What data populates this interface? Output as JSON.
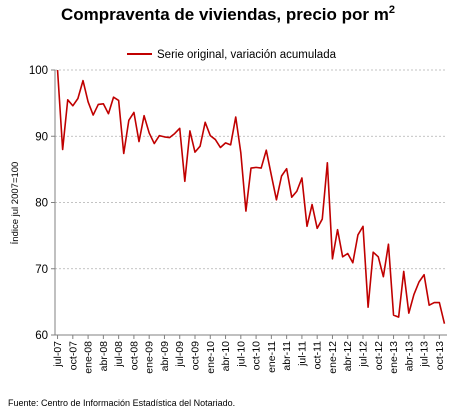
{
  "chart_data": {
    "type": "line",
    "title": "Compraventa de viviendas, precio por m",
    "title_superscript": "2",
    "ylabel": "Índice jul 2007=100",
    "source": "Fuente: Centro de Información Estadística del Notariado.",
    "ylim": [
      60,
      100
    ],
    "yticks": [
      60,
      70,
      80,
      90,
      100
    ],
    "grid": "horizontal",
    "legend_position": "top",
    "series_color": "#c00000",
    "x_tick_labels": [
      "jul-07",
      "oct-07",
      "ene-08",
      "abr-08",
      "jul-08",
      "oct-08",
      "ene-09",
      "abr-09",
      "jul-09",
      "oct-09",
      "ene-10",
      "abr-10",
      "jul-10",
      "oct-10",
      "ene-11",
      "abr-11",
      "jul-11",
      "oct-11",
      "ene-12",
      "abr-12",
      "jul-12",
      "oct-12",
      "ene-13",
      "abr-13",
      "jul-13",
      "oct-13"
    ],
    "series": [
      {
        "name": "Serie original, variación acumulada",
        "values": [
          100,
          88,
          95.5,
          94.6,
          95.7,
          98.4,
          95.2,
          93.2,
          94.8,
          94.9,
          93.4,
          95.9,
          95.4,
          87.4,
          92.4,
          93.6,
          89.2,
          93.1,
          90.5,
          88.9,
          90.1,
          89.9,
          89.8,
          90.4,
          91.2,
          83.2,
          90.8,
          87.6,
          88.5,
          92.1,
          90.1,
          89.5,
          88.3,
          89.0,
          88.7,
          92.9,
          87.5,
          78.7,
          85.2,
          85.3,
          85.2,
          87.9,
          84.1,
          80.4,
          84.0,
          85.1,
          80.8,
          81.7,
          83.7,
          76.4,
          79.7,
          76.1,
          77.5,
          86.0,
          71.5,
          75.9,
          71.8,
          72.3,
          70.9,
          75.1,
          76.4,
          64.2,
          72.5,
          71.8,
          68.8,
          73.7,
          63.0,
          62.7,
          69.6,
          63.3,
          66.1,
          68.0,
          69.1,
          64.5,
          64.9,
          64.9,
          61.7
        ]
      }
    ]
  }
}
